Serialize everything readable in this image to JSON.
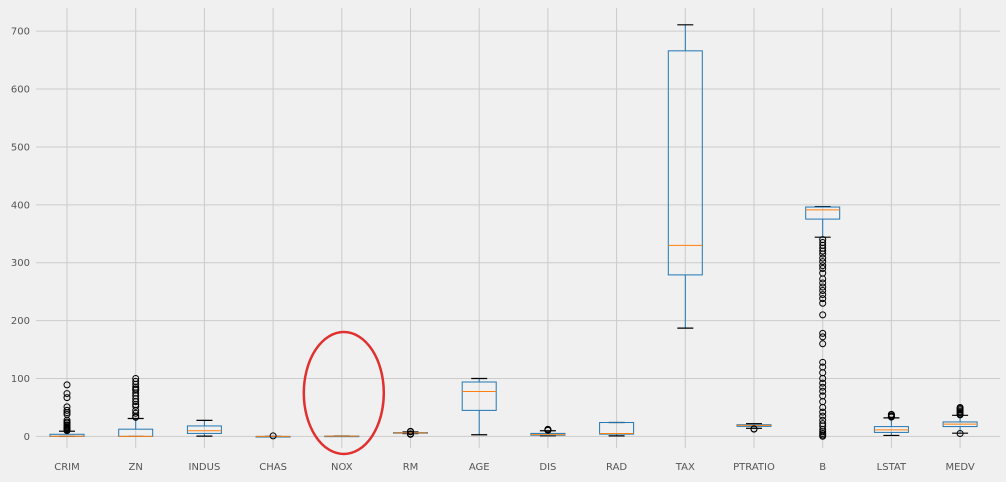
{
  "chart_data": {
    "type": "box",
    "title": "",
    "xlabel": "",
    "ylabel": "",
    "ylim": [
      -20,
      740
    ],
    "yticks": [
      0,
      100,
      200,
      300,
      400,
      500,
      600,
      700
    ],
    "grid": true,
    "colors": {
      "background": "#f0f0f0",
      "grid": "#cbcbcb",
      "box": "#1f77b4",
      "median": "#ff7f0e",
      "whisker": "#000000",
      "highlight": "#e03131"
    },
    "highlight_category": "NOX",
    "categories": [
      "CRIM",
      "ZN",
      "INDUS",
      "CHAS",
      "NOX",
      "RM",
      "AGE",
      "DIS",
      "RAD",
      "TAX",
      "PTRATIO",
      "B",
      "LSTAT",
      "MEDV"
    ],
    "boxes": [
      {
        "q1": 0.08,
        "median": 0.26,
        "q3": 3.7,
        "whislo": 0.006,
        "whishi": 9.0,
        "fliers": [
          10,
          11.5,
          13,
          14.5,
          16,
          18,
          20,
          23,
          25,
          28,
          38,
          41,
          45,
          51,
          67,
          74,
          89
        ]
      },
      {
        "q1": 0,
        "median": 0,
        "q3": 12.5,
        "whislo": 0,
        "whishi": 31.0,
        "fliers": [
          33,
          35,
          40,
          45,
          52,
          55,
          60,
          65,
          70,
          75,
          80,
          82,
          85,
          90,
          95,
          100
        ]
      },
      {
        "q1": 5.2,
        "median": 9.7,
        "q3": 18.1,
        "whislo": 0.5,
        "whishi": 27.7,
        "fliers": []
      },
      {
        "q1": 0,
        "median": 0,
        "q3": 0,
        "whislo": 0,
        "whishi": 0,
        "fliers": [
          1
        ]
      },
      {
        "q1": 0.45,
        "median": 0.54,
        "q3": 0.62,
        "whislo": 0.39,
        "whishi": 0.87,
        "fliers": []
      },
      {
        "q1": 5.9,
        "median": 6.2,
        "q3": 6.6,
        "whislo": 4.9,
        "whishi": 7.7,
        "fliers": [
          3.6,
          4.0,
          4.5,
          8.0,
          8.4,
          8.8
        ]
      },
      {
        "q1": 45,
        "median": 77.5,
        "q3": 94,
        "whislo": 2.9,
        "whishi": 100,
        "fliers": []
      },
      {
        "q1": 2.1,
        "median": 3.2,
        "q3": 5.2,
        "whislo": 1.1,
        "whishi": 9.8,
        "fliers": [
          10.6,
          10.7,
          11.0,
          12.1,
          12.1
        ]
      },
      {
        "q1": 4,
        "median": 5,
        "q3": 24,
        "whislo": 1,
        "whishi": 24,
        "fliers": []
      },
      {
        "q1": 279,
        "median": 330,
        "q3": 666,
        "whislo": 187,
        "whishi": 711,
        "fliers": []
      },
      {
        "q1": 17.4,
        "median": 19.05,
        "q3": 20.2,
        "whislo": 14.0,
        "whishi": 22.0,
        "fliers": [
          12.6,
          13.0
        ]
      },
      {
        "q1": 375.4,
        "median": 391.4,
        "q3": 396.2,
        "whislo": 344.1,
        "whishi": 396.9,
        "fliers": [
          0.3,
          2.5,
          5,
          8,
          12,
          18,
          22,
          28,
          35,
          42,
          50,
          60,
          70,
          78,
          85,
          92,
          100,
          110,
          120,
          128,
          160,
          172,
          178,
          210,
          230,
          238,
          245,
          252,
          258,
          265,
          272,
          282,
          290,
          295,
          302,
          308,
          315,
          320,
          325,
          330,
          335,
          340
        ]
      },
      {
        "q1": 6.95,
        "median": 11.36,
        "q3": 16.96,
        "whislo": 1.73,
        "whishi": 31.99,
        "fliers": [
          33.4,
          34.4,
          34.8,
          36.9,
          37.9,
          38.0
        ]
      },
      {
        "q1": 17.0,
        "median": 21.2,
        "q3": 25.0,
        "whislo": 5.6,
        "whishi": 36.5,
        "fliers": [
          5.0,
          37.2,
          38.7,
          41.3,
          43.5,
          46.0,
          48.3,
          50.0
        ]
      }
    ]
  }
}
